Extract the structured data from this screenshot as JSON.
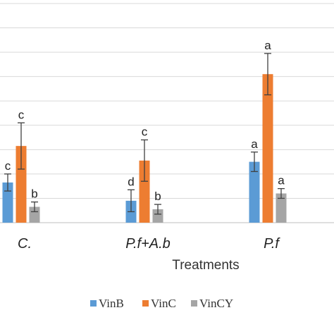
{
  "chart_data": {
    "type": "bar",
    "xlabel": "Treatments",
    "categories": [
      "C.",
      "P.f+A.b",
      "P.f"
    ],
    "ylim": [
      0,
      9
    ],
    "grid": true,
    "legend_position": "bottom",
    "series": [
      {
        "name": "VinB",
        "color": "#5B9BD5",
        "values": [
          1.65,
          0.9,
          2.5
        ],
        "errors": [
          0.35,
          0.45,
          0.4
        ],
        "labels": [
          "c",
          "d",
          "a"
        ]
      },
      {
        "name": "VinC",
        "color": "#ED7D31",
        "values": [
          3.15,
          2.55,
          6.1
        ],
        "errors": [
          0.95,
          0.85,
          0.85
        ],
        "labels": [
          "c",
          "c",
          "a"
        ]
      },
      {
        "name": "VinCY",
        "color": "#A5A5A5",
        "values": [
          0.65,
          0.55,
          1.2
        ],
        "errors": [
          0.2,
          0.2,
          0.2
        ],
        "labels": [
          "b",
          "b",
          "a"
        ]
      }
    ]
  }
}
